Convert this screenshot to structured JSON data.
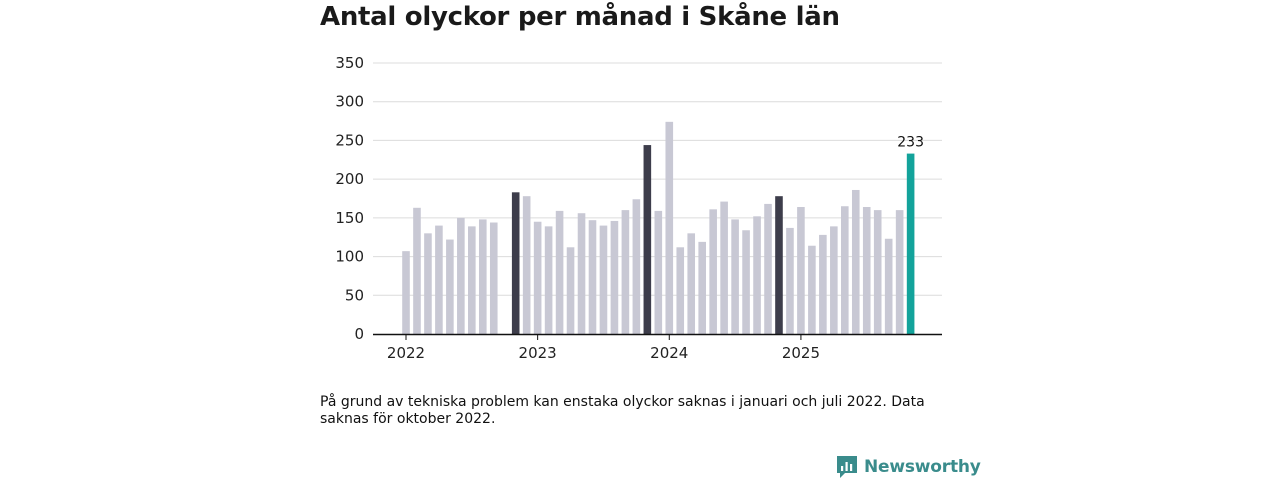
{
  "title": "Antal olyckor per månad i Skåne län",
  "note": "På grund av tekniska problem kan enstaka olyckor saknas i januari och juli 2022. Data saknas för oktober 2022.",
  "brand": {
    "name": "Newsworthy",
    "color": "#3a8c8c"
  },
  "colors": {
    "default": "#c8c8d4",
    "highlight": "#3d3d4b",
    "latest": "#13a39b",
    "grid": "#dcdcdc",
    "axis": "#111111"
  },
  "chart_data": {
    "type": "bar",
    "title": "Antal olyckor per månad i Skåne län",
    "xlabel": "",
    "ylabel": "",
    "ylim": [
      0,
      350
    ],
    "yticks": [
      "0",
      "50",
      "100",
      "150",
      "200",
      "250",
      "300",
      "350"
    ],
    "year_ticks": [
      {
        "label": "2022",
        "index": 0
      },
      {
        "label": "2023",
        "index": 12
      },
      {
        "label": "2024",
        "index": 24
      },
      {
        "label": "2025",
        "index": 36
      }
    ],
    "categories": [
      "2022-01",
      "2022-02",
      "2022-03",
      "2022-04",
      "2022-05",
      "2022-06",
      "2022-07",
      "2022-08",
      "2022-09",
      "2022-10",
      "2022-11",
      "2022-12",
      "2023-01",
      "2023-02",
      "2023-03",
      "2023-04",
      "2023-05",
      "2023-06",
      "2023-07",
      "2023-08",
      "2023-09",
      "2023-10",
      "2023-11",
      "2023-12",
      "2024-01",
      "2024-02",
      "2024-03",
      "2024-04",
      "2024-05",
      "2024-06",
      "2024-07",
      "2024-08",
      "2024-09",
      "2024-10",
      "2024-11",
      "2024-12",
      "2025-01",
      "2025-02",
      "2025-03",
      "2025-04",
      "2025-05",
      "2025-06",
      "2025-07",
      "2025-08",
      "2025-09",
      "2025-10",
      "2025-11",
      "2025-12"
    ],
    "values": [
      107,
      163,
      130,
      140,
      122,
      150,
      139,
      148,
      144,
      null,
      183,
      178,
      145,
      139,
      159,
      112,
      156,
      147,
      140,
      146,
      160,
      174,
      244,
      159,
      274,
      112,
      130,
      119,
      161,
      171,
      148,
      134,
      152,
      168,
      178,
      137,
      164,
      114,
      128,
      139,
      165,
      186,
      164,
      160,
      123,
      160,
      233,
      null
    ],
    "highlight_indices": [
      10,
      22,
      34
    ],
    "latest_index": 46,
    "data_labels": [
      {
        "index": 46,
        "text": "233"
      }
    ]
  }
}
